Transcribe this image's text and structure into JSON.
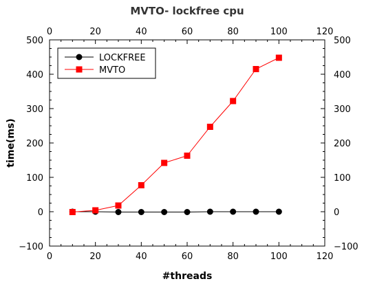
{
  "chart_data": {
    "type": "line",
    "title": "MVTO- lockfree cpu",
    "xlabel": "#threads",
    "ylabel": "time(ms)",
    "xlim": [
      0,
      120
    ],
    "ylim": [
      -100,
      500
    ],
    "x_ticks": [
      0,
      20,
      40,
      60,
      80,
      100,
      120
    ],
    "y_ticks": [
      -100,
      0,
      100,
      200,
      300,
      400,
      500
    ],
    "x_tick_labels": [
      "0",
      "20",
      "40",
      "60",
      "80",
      "100",
      "120"
    ],
    "y_tick_labels": [
      "−100",
      "0",
      "100",
      "200",
      "300",
      "400",
      "500"
    ],
    "grid": false,
    "legend_position": "top-left",
    "x": [
      10,
      20,
      30,
      40,
      50,
      60,
      70,
      80,
      90,
      100
    ],
    "series": [
      {
        "name": "LOCKFREE",
        "color": "#000000",
        "marker": "circle",
        "values": [
          0,
          0,
          -1,
          -1,
          -1,
          -1,
          0,
          0,
          0,
          0
        ]
      },
      {
        "name": "MVTO",
        "color": "#ff0000",
        "marker": "square",
        "values": [
          -1,
          4,
          18,
          77,
          142,
          163,
          247,
          322,
          415,
          448
        ]
      }
    ]
  }
}
